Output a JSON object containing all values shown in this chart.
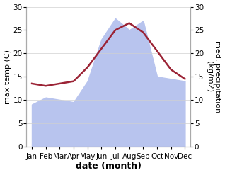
{
  "months": [
    "Jan",
    "Feb",
    "Mar",
    "Apr",
    "May",
    "Jun",
    "Jul",
    "Aug",
    "Sep",
    "Oct",
    "Nov",
    "Dec"
  ],
  "max_temp": [
    13.5,
    13.0,
    13.5,
    14.0,
    17.0,
    21.0,
    25.0,
    26.5,
    24.5,
    20.5,
    16.5,
    14.5
  ],
  "precipitation": [
    9.0,
    10.5,
    10.0,
    9.5,
    14.0,
    23.0,
    27.5,
    25.0,
    27.0,
    15.0,
    14.5,
    14.0
  ],
  "temp_color": "#9b2335",
  "precip_fill_color": "#b8c4ee",
  "ylim": [
    0,
    30
  ],
  "xlabel": "date (month)",
  "ylabel_left": "max temp (C)",
  "ylabel_right": "med. precipitation\n(kg/m2)",
  "grid_color": "#d0d0d0",
  "label_fontsize": 8,
  "tick_fontsize": 7.5,
  "xlabel_fontsize": 9,
  "linewidth": 1.8,
  "figsize": [
    3.18,
    2.47
  ],
  "dpi": 100
}
